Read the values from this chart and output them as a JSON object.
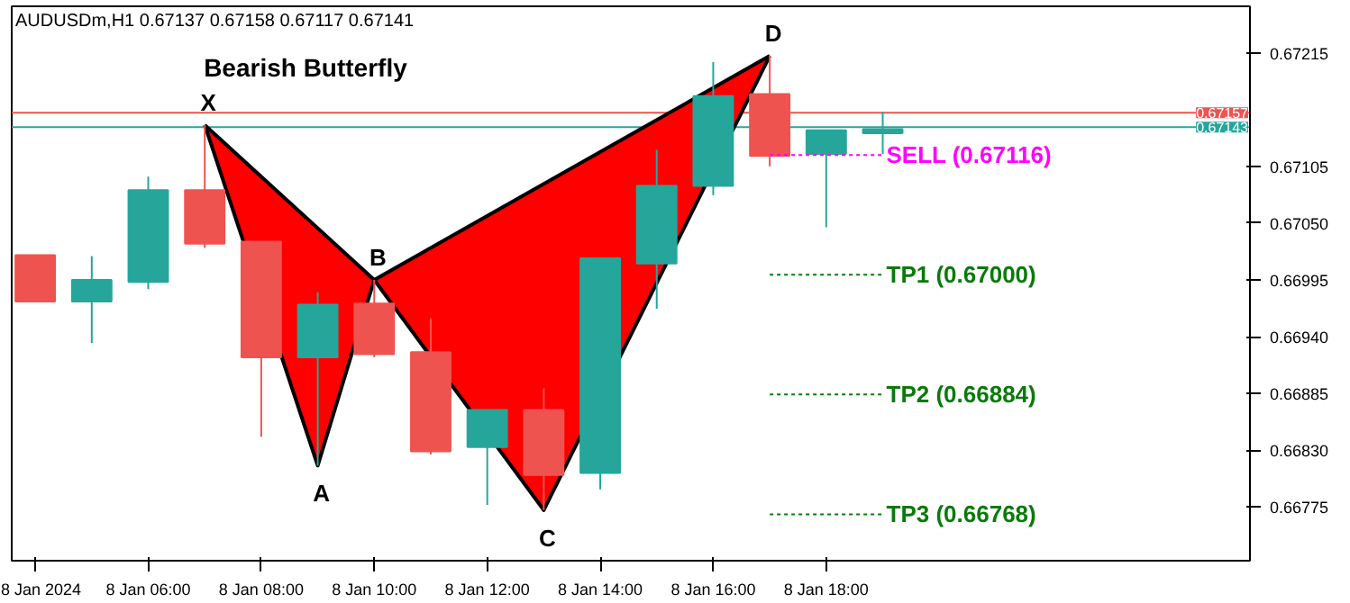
{
  "chart_data": {
    "type": "candlestick",
    "title": "Bearish Butterfly",
    "annotations": [
      "AUDUSDm,H1  0.67137 0.67158 0.67117 0.67141",
      {
        "text": "X",
        "x": "2024-01-08T07:00",
        "y": 0.67145
      },
      {
        "text": "A",
        "x": "2024-01-08T09:00",
        "y": 0.66815
      },
      {
        "text": "B",
        "x": "2024-01-08T10:00",
        "y": 0.66995
      },
      {
        "text": "C",
        "x": "2024-01-08T13:00",
        "y": 0.66772
      },
      {
        "text": "D",
        "x": "2024-01-08T17:00",
        "y": 0.67212
      }
    ],
    "x": [
      "2024-01-08T04:00",
      "2024-01-08T05:00",
      "2024-01-08T06:00",
      "2024-01-08T07:00",
      "2024-01-08T08:00",
      "2024-01-08T09:00",
      "2024-01-08T10:00",
      "2024-01-08T11:00",
      "2024-01-08T12:00",
      "2024-01-08T13:00",
      "2024-01-08T14:00",
      "2024-01-08T15:00",
      "2024-01-08T16:00",
      "2024-01-08T17:00",
      "2024-01-08T18:00",
      "2024-01-08T19:00"
    ],
    "ohlc": [
      [
        0.67019,
        0.67019,
        0.66974,
        0.66974
      ],
      [
        0.66974,
        0.67018,
        0.66934,
        0.66995
      ],
      [
        0.66993,
        0.67095,
        0.66986,
        0.67082
      ],
      [
        0.67082,
        0.67145,
        0.67026,
        0.6703
      ],
      [
        0.67032,
        0.67032,
        0.66843,
        0.6692
      ],
      [
        0.6692,
        0.66983,
        0.66815,
        0.66971
      ],
      [
        0.66972,
        0.66995,
        0.6692,
        0.66923
      ],
      [
        0.66925,
        0.66958,
        0.66826,
        0.66829
      ],
      [
        0.66833,
        0.66869,
        0.66777,
        0.66869
      ],
      [
        0.66869,
        0.6689,
        0.66772,
        0.66806
      ],
      [
        0.66808,
        0.67016,
        0.66792,
        0.67016
      ],
      [
        0.67011,
        0.67121,
        0.66967,
        0.67086
      ],
      [
        0.67086,
        0.67206,
        0.67077,
        0.67173
      ],
      [
        0.67175,
        0.67212,
        0.67105,
        0.67115
      ],
      [
        0.67117,
        0.6714,
        0.67046,
        0.6714
      ],
      [
        0.67137,
        0.67158,
        0.67117,
        0.67141
      ]
    ],
    "colors": [
      "#ef5350",
      "#26a69a",
      "#26a69a",
      "#ef5350",
      "#ef5350",
      "#26a69a",
      "#ef5350",
      "#ef5350",
      "#26a69a",
      "#ef5350",
      "#26a69a",
      "#26a69a",
      "#26a69a",
      "#ef5350",
      "#26a69a",
      "#26a69a"
    ],
    "series": [
      {
        "type": "line",
        "color": "#000000",
        "x": [
          "2024-01-08T07:00",
          "2024-01-08T09:00",
          "2024-01-08T10:00",
          "2024-01-08T13:00",
          "2024-01-08T17:00"
        ],
        "values": [
          0.67145,
          0.66815,
          0.66995,
          0.66772,
          0.67212
        ],
        "lower": [
          0.67145,
          0.66815,
          0.66995,
          0.66772,
          0.67212
        ],
        "upper": [
          0.67145,
          0.67045,
          0.66995,
          0.67088,
          0.67212
        ]
      },
      {
        "type": "line",
        "color": "#000000",
        "x": [
          "2024-01-08T07:00",
          "2024-01-08T10:00",
          "2024-01-08T17:00"
        ],
        "values": [
          0.67145,
          0.66995,
          0.67212
        ]
      },
      {
        "type": "line",
        "name": "SELL (0.67116)",
        "color": "#ff00ff",
        "line_style": "dashed",
        "x": [
          "2024-01-08T17:00",
          "2024-01-08T19:00"
        ],
        "values": [
          0.67116,
          0.67116
        ]
      },
      {
        "type": "line",
        "name": "TP1 (0.67000)",
        "color": "#0a7a0a",
        "line_style": "dashed",
        "x": [
          "2024-01-08T17:00",
          "2024-01-08T19:00"
        ],
        "values": [
          0.67,
          0.67
        ]
      },
      {
        "type": "line",
        "name": "TP2 (0.66884)",
        "color": "#0a7a0a",
        "line_style": "dashed",
        "x": [
          "2024-01-08T17:00",
          "2024-01-08T19:00"
        ],
        "values": [
          0.66884,
          0.66884
        ]
      },
      {
        "type": "line",
        "name": "TP3 (0.66768)",
        "color": "#0a7a0a",
        "line_style": "dashed",
        "x": [
          "2024-01-08T17:00",
          "2024-01-08T19:00"
        ],
        "values": [
          0.66768,
          0.66768
        ]
      }
    ],
    "ref_lines": [
      {
        "axis": "y",
        "value": 0.67157,
        "label": "0.67157",
        "color": "#ef5350"
      },
      {
        "axis": "y",
        "value": 0.67143,
        "label": "0.67143",
        "color": "#26a69a"
      }
    ],
    "xlim": [
      "2024-01-08T03:35",
      "2024-01-09T01:30"
    ],
    "xticks": [
      {
        "value": "2024-01-08T04:00",
        "label": "8 Jan 2024"
      },
      {
        "value": "2024-01-08T06:00",
        "label": "8 Jan 06:00"
      },
      {
        "value": "2024-01-08T08:00",
        "label": "8 Jan 08:00"
      },
      {
        "value": "2024-01-08T10:00",
        "label": "8 Jan 10:00"
      },
      {
        "value": "2024-01-08T12:00",
        "label": "8 Jan 12:00"
      },
      {
        "value": "2024-01-08T14:00",
        "label": "8 Jan 14:00"
      },
      {
        "value": "2024-01-08T16:00",
        "label": "8 Jan 16:00"
      },
      {
        "value": "2024-01-08T18:00",
        "label": "8 Jan 18:00"
      }
    ],
    "ylim": [
      0.66723,
      0.6726
    ],
    "yticks": [
      0.67215,
      0.67105,
      {
        "value": 0.6705,
        "label": "0.67050"
      },
      0.66995,
      {
        "value": 0.6694,
        "label": "0.66940"
      },
      0.66885,
      {
        "value": 0.6683,
        "label": "0.66830"
      },
      0.66775
    ]
  }
}
